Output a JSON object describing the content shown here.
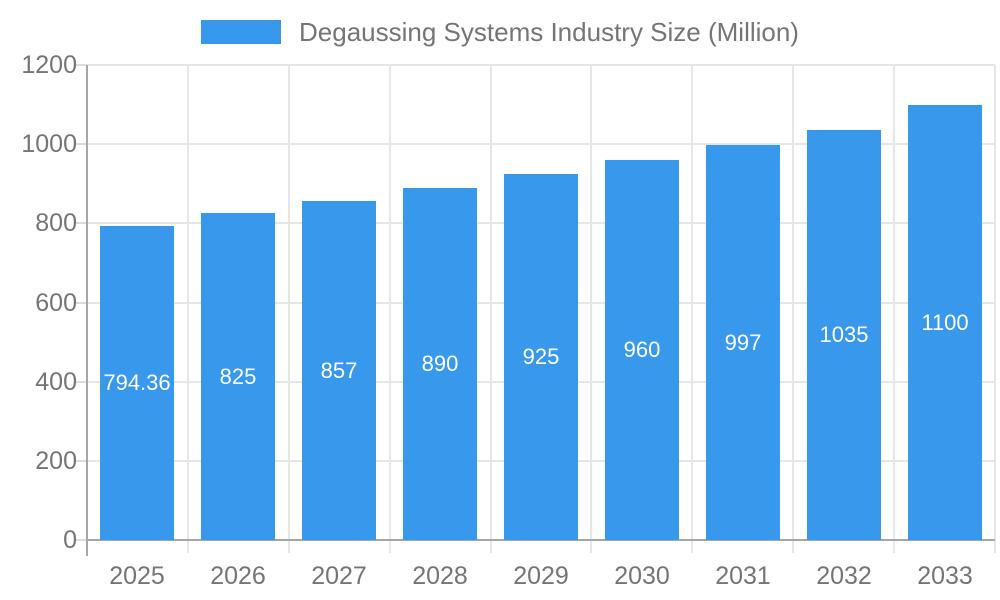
{
  "legend": {
    "label": "Degaussing Systems Industry Size (Million)"
  },
  "colors": {
    "bar": "#3898EC",
    "grid": "#E6E6E6",
    "axis": "#A6A6A6",
    "tick": "#DCDCDC",
    "axis_text": "#757575",
    "bar_label_text": "#FFFFFF",
    "background": "#FFFFFF"
  },
  "chart_data": {
    "type": "bar",
    "title": "Degaussing Systems Industry Size (Million)",
    "categories": [
      "2025",
      "2026",
      "2027",
      "2028",
      "2029",
      "2030",
      "2031",
      "2032",
      "2033"
    ],
    "values": [
      794.36,
      825,
      857,
      890,
      925,
      960,
      997,
      1035,
      1100
    ],
    "bar_labels": [
      "794.36",
      "825",
      "857",
      "890",
      "925",
      "960",
      "997",
      "1035",
      "1100"
    ],
    "xlabel": "",
    "ylabel": "",
    "ylim": [
      0,
      1200
    ],
    "yticks": [
      0,
      200,
      400,
      600,
      800,
      1000,
      1200
    ],
    "grid": true,
    "legend_position": "top",
    "value_labels_position": "inside-center"
  }
}
